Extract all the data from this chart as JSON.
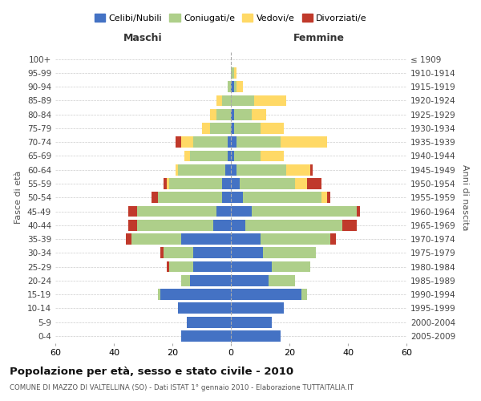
{
  "age_groups": [
    "0-4",
    "5-9",
    "10-14",
    "15-19",
    "20-24",
    "25-29",
    "30-34",
    "35-39",
    "40-44",
    "45-49",
    "50-54",
    "55-59",
    "60-64",
    "65-69",
    "70-74",
    "75-79",
    "80-84",
    "85-89",
    "90-94",
    "95-99",
    "100+"
  ],
  "birth_years": [
    "2005-2009",
    "2000-2004",
    "1995-1999",
    "1990-1994",
    "1985-1989",
    "1980-1984",
    "1975-1979",
    "1970-1974",
    "1965-1969",
    "1960-1964",
    "1955-1959",
    "1950-1954",
    "1945-1949",
    "1940-1944",
    "1935-1939",
    "1930-1934",
    "1925-1929",
    "1920-1924",
    "1915-1919",
    "1910-1914",
    "≤ 1909"
  ],
  "males": {
    "celibi": [
      17,
      15,
      18,
      24,
      14,
      13,
      13,
      17,
      6,
      5,
      3,
      3,
      2,
      1,
      1,
      0,
      0,
      0,
      0,
      0,
      0
    ],
    "coniugati": [
      0,
      0,
      0,
      1,
      3,
      8,
      10,
      17,
      26,
      27,
      22,
      18,
      16,
      13,
      12,
      7,
      5,
      3,
      1,
      0,
      0
    ],
    "vedovi": [
      0,
      0,
      0,
      0,
      0,
      0,
      0,
      0,
      0,
      0,
      0,
      1,
      1,
      2,
      4,
      3,
      2,
      2,
      0,
      0,
      0
    ],
    "divorziati": [
      0,
      0,
      0,
      0,
      0,
      1,
      1,
      2,
      3,
      3,
      2,
      1,
      0,
      0,
      2,
      0,
      0,
      0,
      0,
      0,
      0
    ]
  },
  "females": {
    "nubili": [
      17,
      14,
      18,
      24,
      13,
      14,
      11,
      10,
      5,
      7,
      4,
      3,
      2,
      1,
      2,
      1,
      1,
      0,
      1,
      0,
      0
    ],
    "coniugate": [
      0,
      0,
      0,
      2,
      9,
      13,
      18,
      24,
      33,
      36,
      27,
      19,
      17,
      9,
      15,
      9,
      6,
      8,
      1,
      1,
      0
    ],
    "vedove": [
      0,
      0,
      0,
      0,
      0,
      0,
      0,
      0,
      0,
      0,
      2,
      4,
      8,
      8,
      16,
      8,
      5,
      11,
      2,
      1,
      0
    ],
    "divorziate": [
      0,
      0,
      0,
      0,
      0,
      0,
      0,
      2,
      5,
      1,
      1,
      5,
      1,
      0,
      0,
      0,
      0,
      0,
      0,
      0,
      0
    ]
  },
  "colors": {
    "celibi": "#4472C4",
    "coniugati": "#AECF8A",
    "vedovi": "#FFD966",
    "divorziati": "#C0392B"
  },
  "title": "Popolazione per età, sesso e stato civile - 2010",
  "subtitle": "COMUNE DI MAZZO DI VALTELLINA (SO) - Dati ISTAT 1° gennaio 2010 - Elaborazione TUTTAITALIA.IT",
  "label_maschi": "Maschi",
  "label_femmine": "Femmine",
  "ylabel_left": "Fasce di età",
  "ylabel_right": "Anni di nascita",
  "xlim": 60,
  "legend_labels": [
    "Celibi/Nubili",
    "Coniugati/e",
    "Vedovi/e",
    "Divorziati/e"
  ],
  "bg_color": "#ffffff",
  "grid_color": "#cccccc"
}
